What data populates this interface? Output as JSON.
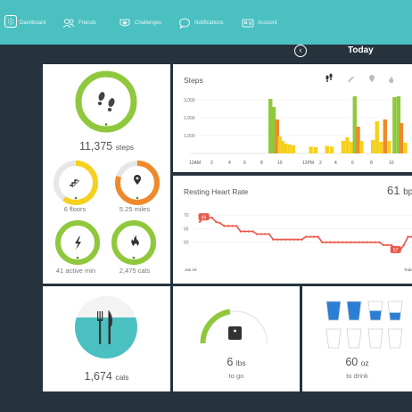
{
  "nav": {
    "items": [
      {
        "label": "Dashboard",
        "icon": "dashboard-icon"
      },
      {
        "label": "Friends",
        "icon": "friends-icon"
      },
      {
        "label": "Challenges",
        "icon": "challenges-icon"
      },
      {
        "label": "Notifications",
        "icon": "notifications-icon"
      },
      {
        "label": "Account",
        "icon": "account-icon"
      }
    ]
  },
  "date_nav": {
    "label": "Today"
  },
  "colors": {
    "teal": "#4bc0c1",
    "green": "#8fc83c",
    "yellow": "#f5d11e",
    "orange": "#ee8a2c",
    "red": "#e9584b",
    "dark": "#26333d"
  },
  "stats": {
    "steps": {
      "value": "11,375",
      "unit": "steps",
      "progress": 1.0
    },
    "floors": {
      "value": "6",
      "unit": "floors",
      "progress": 0.6
    },
    "miles": {
      "value": "5.25",
      "unit": "miles",
      "progress": 0.8
    },
    "active": {
      "value": "41",
      "unit": "active min",
      "progress": 1.0
    },
    "cals": {
      "value": "2,475",
      "unit": "cals",
      "progress": 1.0
    }
  },
  "steps_chart": {
    "title": "Steps",
    "tab_icons": [
      "steps-icon",
      "floors-icon",
      "distance-icon",
      "calories-icon"
    ]
  },
  "heart_chart": {
    "title": "Resting Heart Rate",
    "value": "61",
    "unit": "bpm"
  },
  "food": {
    "value": "1,674",
    "unit": "cals"
  },
  "weight": {
    "value": "6",
    "unit": "lbs",
    "sub": "to go",
    "progress": 0.45
  },
  "water": {
    "value": "60",
    "unit": "oz",
    "sub": "to drink",
    "filled": [
      1.0,
      1.0,
      0.5,
      0.4,
      0,
      0,
      0,
      0,
      0,
      0,
      0,
      0
    ]
  },
  "chart_data": [
    {
      "type": "bar",
      "title": "Steps",
      "xticks": [
        "12AM",
        "2",
        "4",
        "6",
        "8",
        "10",
        "12PM",
        "2",
        "4",
        "6",
        "8",
        "10"
      ],
      "yticks": [
        1000,
        2000,
        3000
      ],
      "ylim": [
        0,
        3500
      ],
      "bar_series": [
        {
          "x": 11.8,
          "value": 3050,
          "color": "#8fc83c"
        },
        {
          "x": 12.3,
          "value": 2600,
          "color": "#8fc83c"
        },
        {
          "x": 12.8,
          "value": 1900,
          "color": "#ee8a2c"
        },
        {
          "x": 13.2,
          "value": 950,
          "color": "#f5d11e"
        },
        {
          "x": 13.6,
          "value": 700,
          "color": "#f5d11e"
        },
        {
          "x": 14.0,
          "value": 550,
          "color": "#f5d11e"
        },
        {
          "x": 14.6,
          "value": 500,
          "color": "#f5d11e"
        },
        {
          "x": 15.2,
          "value": 450,
          "color": "#f5d11e"
        },
        {
          "x": 17.8,
          "value": 380,
          "color": "#f5d11e"
        },
        {
          "x": 18.5,
          "value": 350,
          "color": "#f5d11e"
        },
        {
          "x": 20.2,
          "value": 420,
          "color": "#f5d11e"
        },
        {
          "x": 20.9,
          "value": 380,
          "color": "#f5d11e"
        },
        {
          "x": 22.6,
          "value": 700,
          "color": "#f5d11e"
        },
        {
          "x": 23.2,
          "value": 900,
          "color": "#f5d11e"
        },
        {
          "x": 23.8,
          "value": 650,
          "color": "#f5d11e"
        },
        {
          "x": 24.3,
          "value": 3200,
          "color": "#8fc83c"
        },
        {
          "x": 24.8,
          "value": 1500,
          "color": "#ee8a2c"
        },
        {
          "x": 25.3,
          "value": 700,
          "color": "#f5d11e"
        },
        {
          "x": 27.0,
          "value": 750,
          "color": "#f5d11e"
        },
        {
          "x": 27.6,
          "value": 1800,
          "color": "#f5d11e"
        },
        {
          "x": 28.2,
          "value": 650,
          "color": "#f5d11e"
        },
        {
          "x": 28.8,
          "value": 1900,
          "color": "#ee8a2c"
        },
        {
          "x": 29.4,
          "value": 700,
          "color": "#f5d11e"
        },
        {
          "x": 30.2,
          "value": 3150,
          "color": "#8fc83c"
        },
        {
          "x": 30.8,
          "value": 3200,
          "color": "#8fc83c"
        },
        {
          "x": 31.2,
          "value": 1700,
          "color": "#ee8a2c"
        },
        {
          "x": 31.8,
          "value": 600,
          "color": "#f5d11e"
        }
      ]
    },
    {
      "type": "line",
      "title": "Resting Heart Rate",
      "xticks": [
        "Jan 19",
        "Toda"
      ],
      "yticks": [
        60,
        65,
        70
      ],
      "ylim": [
        55,
        72
      ],
      "y": [
        67.5,
        69,
        69,
        69,
        67.5,
        67,
        66,
        66,
        66,
        66,
        64,
        64,
        64,
        64,
        63,
        63,
        63,
        63,
        61,
        61,
        61,
        61,
        61,
        61,
        61,
        61,
        62,
        62,
        62,
        62,
        60,
        60,
        60,
        60,
        60,
        60,
        60,
        60,
        60,
        60,
        60,
        60,
        60,
        60,
        60,
        59,
        59,
        59,
        57,
        57,
        59,
        62,
        62
      ],
      "annotations": [
        {
          "index": 1,
          "label": "69"
        },
        {
          "index": 48,
          "label": "57"
        }
      ]
    }
  ]
}
